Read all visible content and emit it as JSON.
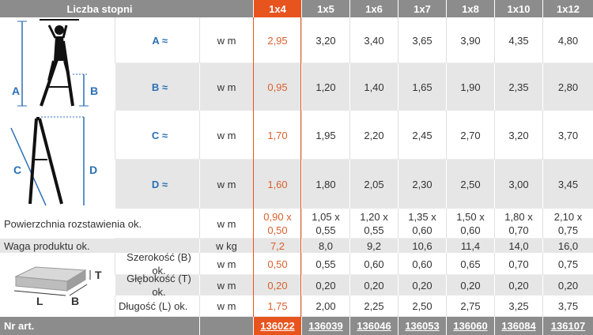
{
  "header": {
    "label": "Liczba stopni",
    "columns": [
      "1x4",
      "1x5",
      "1x6",
      "1x7",
      "1x8",
      "1x10",
      "1x12"
    ]
  },
  "rows": [
    {
      "label": "A ≈",
      "unit": "w m",
      "values": [
        "2,95",
        "3,20",
        "3,40",
        "3,65",
        "3,90",
        "4,35",
        "4,80"
      ]
    },
    {
      "label": "B ≈",
      "unit": "w m",
      "values": [
        "0,95",
        "1,20",
        "1,40",
        "1,65",
        "1,90",
        "2,35",
        "2,80"
      ]
    },
    {
      "label": "C ≈",
      "unit": "w m",
      "values": [
        "1,70",
        "1,95",
        "2,20",
        "2,45",
        "2,70",
        "3,20",
        "3,70"
      ]
    },
    {
      "label": "D ≈",
      "unit": "w m",
      "values": [
        "1,60",
        "1,80",
        "2,05",
        "2,30",
        "2,50",
        "3,00",
        "3,45"
      ]
    },
    {
      "label": "Powierzchnia rozstawienia ok.",
      "unit": "w m",
      "values": [
        [
          "0,90 x",
          "0,50"
        ],
        [
          "1,05 x",
          "0,55"
        ],
        [
          "1,20 x",
          "0,55"
        ],
        [
          "1,35 x",
          "0,60"
        ],
        [
          "1,50 x",
          "0,60"
        ],
        [
          "1,80 x",
          "0,70"
        ],
        [
          "2,10 x",
          "0,75"
        ]
      ]
    },
    {
      "label": "Waga produktu ok.",
      "unit": "w kg",
      "values": [
        "7,2",
        "8,0",
        "9,2",
        "10,6",
        "11,4",
        "14,0",
        "16,0"
      ]
    },
    {
      "label": "Szerokość (B) ok.",
      "unit": "w m",
      "values": [
        "0,50",
        "0,55",
        "0,60",
        "0,60",
        "0,65",
        "0,70",
        "0,75"
      ]
    },
    {
      "label": "Głębokość (T) ok.",
      "unit": "w m",
      "values": [
        "0,20",
        "0,20",
        "0,20",
        "0,20",
        "0,20",
        "0,20",
        "0,20"
      ]
    },
    {
      "label": "Długość (L) ok.",
      "unit": "w m",
      "values": [
        "1,75",
        "2,00",
        "2,25",
        "2,50",
        "2,75",
        "3,25",
        "3,75"
      ]
    }
  ],
  "footer": {
    "label": "Nr art.",
    "values": [
      "136022",
      "136039",
      "136046",
      "136053",
      "136060",
      "136084",
      "136107"
    ]
  },
  "diagram_labels": {
    "ladder_open": [
      "A",
      "B"
    ],
    "ladder_side": [
      "C",
      "D"
    ],
    "box": [
      "T",
      "L",
      "B"
    ]
  }
}
